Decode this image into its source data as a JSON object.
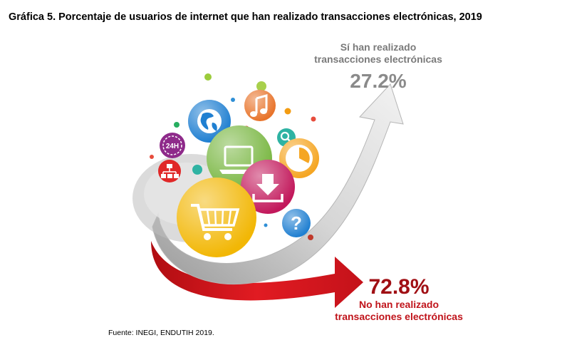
{
  "title": "Gráfica 5. Porcentaje de usuarios de internet que han realizado transacciones electrónicas, 2019",
  "source": "Fuente: INEGI, ENDUTIH 2019.",
  "chart_data": {
    "type": "pie",
    "title": "Gráfica 5. Porcentaje de usuarios de internet que han realizado transacciones electrónicas, 2019",
    "categories": [
      "Sí han realizado transacciones electrónicas",
      "No han realizado transacciones electrónicas"
    ],
    "values": [
      27.2,
      72.8
    ],
    "value_labels": [
      "27.2%",
      "72.8%"
    ],
    "label_lines": [
      [
        "Sí han realizado",
        "transacciones electrónicas"
      ],
      [
        "No han realizado",
        "transacciones electrónicas"
      ]
    ],
    "colors": [
      "#8c8c8c",
      "#d9141b"
    ],
    "label_colors": [
      "#7a7a7a",
      "#a00f14"
    ]
  },
  "icons": [
    "globe-icon",
    "music-note-icon",
    "search-icon",
    "24h-clock-icon",
    "network-icon",
    "laptop-icon",
    "clock-icon",
    "download-icon",
    "shopping-cart-icon",
    "question-mark-icon"
  ]
}
